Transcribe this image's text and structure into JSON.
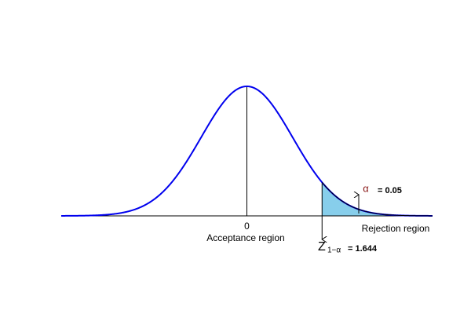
{
  "chart_data": {
    "type": "normal",
    "xlim": [
      -4.06,
      4.06
    ],
    "xticks": [
      0
    ],
    "critical": {
      "value": 1.644,
      "label": "= 1.644"
    },
    "alpha": {
      "value": 0.05,
      "label": "= 0.05"
    },
    "alpha_symbol": "α",
    "z_symbol": "Z",
    "z_subscript": "1−α",
    "acceptance_label": "Acceptance region",
    "rejection_label": "Rejection region",
    "curve_color": "#0000ee",
    "fill_color": "#87ceeb"
  }
}
